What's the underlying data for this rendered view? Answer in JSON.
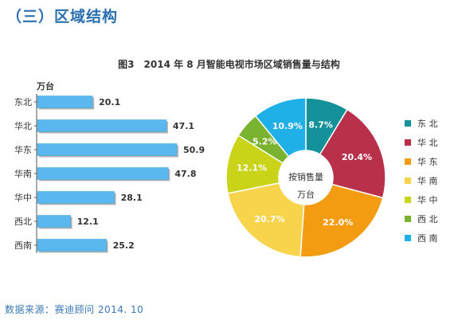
{
  "section_title": "（三）区域结构",
  "chart_title": "图3　2014 年 8 月智能电视市场区域销售量与结构",
  "source": "数据来源：赛迪顾问 2014. 10",
  "chart_data": [
    {
      "type": "bar",
      "orientation": "horizontal",
      "unit_label": "万台",
      "categories": [
        "东北",
        "华北",
        "华东",
        "华南",
        "华中",
        "西北",
        "西南"
      ],
      "values": [
        20.1,
        47.1,
        50.9,
        47.8,
        28.1,
        12.1,
        25.2
      ],
      "value_labels": [
        "20.1",
        "47.1",
        "50.9",
        "47.8",
        "28.1",
        "12.1",
        "25.2"
      ],
      "xlim": [
        0,
        50.9
      ],
      "bar_color": "#5bb8ee"
    },
    {
      "type": "pie",
      "style": "donut",
      "center_label": [
        "按销售量",
        "万台"
      ],
      "categories": [
        "东北",
        "华北",
        "华东",
        "华南",
        "华中",
        "西北",
        "西南"
      ],
      "values": [
        8.7,
        20.4,
        22.0,
        20.7,
        12.1,
        5.2,
        10.9
      ],
      "value_labels": [
        "8.7%",
        "20.4%",
        "22.0%",
        "20.7%",
        "12.1%",
        "5.2%",
        "10.9%"
      ],
      "legend_labels": [
        "东 北",
        "华 北",
        "华 东",
        "华 南",
        "华 中",
        "西 北",
        "西 南"
      ],
      "colors": [
        "#14919b",
        "#b8304a",
        "#f39c12",
        "#f7d44c",
        "#c9d418",
        "#7ab32f",
        "#20b0e8"
      ],
      "legend_position": "right"
    }
  ]
}
